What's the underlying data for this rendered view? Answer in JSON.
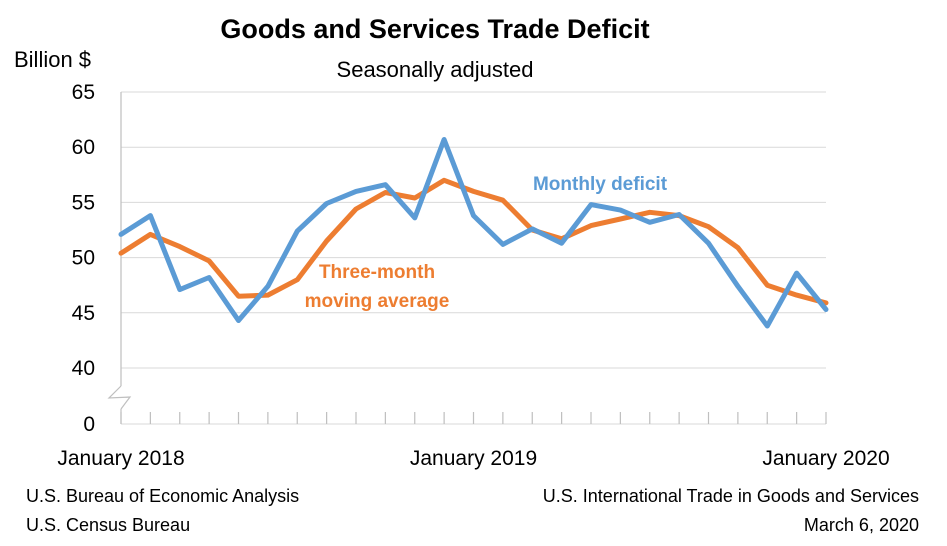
{
  "chart_data": {
    "type": "line",
    "title": "Goods and Services Trade Deficit",
    "subtitle": "Seasonally adjusted",
    "ylabel": "Billion $",
    "ylim": [
      40,
      65
    ],
    "yticks": [
      40,
      45,
      50,
      55,
      60,
      65
    ],
    "ybreak_label": "0",
    "xtick_labels": [
      "January 2018",
      "January 2019",
      "January 2020"
    ],
    "x": [
      "2018-01",
      "2018-02",
      "2018-03",
      "2018-04",
      "2018-05",
      "2018-06",
      "2018-07",
      "2018-08",
      "2018-09",
      "2018-10",
      "2018-11",
      "2018-12",
      "2019-01",
      "2019-02",
      "2019-03",
      "2019-04",
      "2019-05",
      "2019-06",
      "2019-07",
      "2019-08",
      "2019-09",
      "2019-10",
      "2019-11",
      "2019-12",
      "2020-01"
    ],
    "grid": true,
    "series": [
      {
        "name": "Monthly deficit",
        "color": "#5b9bd5",
        "values": [
          52.1,
          53.8,
          47.1,
          48.2,
          44.3,
          47.4,
          52.4,
          54.9,
          56.0,
          56.6,
          53.6,
          60.7,
          53.8,
          51.2,
          52.6,
          51.3,
          54.8,
          54.3,
          53.2,
          53.9,
          51.3,
          47.4,
          43.8,
          48.6,
          45.3
        ]
      },
      {
        "name": "Three-month moving average",
        "label_lines": [
          "Three-month",
          "moving average"
        ],
        "color": "#ed7d31",
        "values": [
          50.4,
          52.1,
          51.0,
          49.7,
          46.5,
          46.6,
          48.0,
          51.5,
          54.4,
          55.9,
          55.4,
          57.0,
          56.0,
          55.2,
          52.5,
          51.7,
          52.9,
          53.5,
          54.1,
          53.8,
          52.8,
          50.9,
          47.5,
          46.6,
          45.9
        ]
      }
    ]
  },
  "footer": {
    "left_line1": "U.S. Bureau of Economic Analysis",
    "left_line2": "U.S. Census Bureau",
    "right_line1": "U.S. International Trade in Goods and Services",
    "right_line2": "March 6, 2020"
  }
}
